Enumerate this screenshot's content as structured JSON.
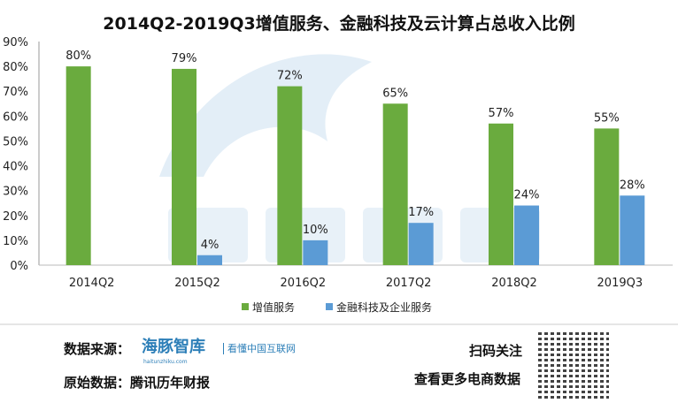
{
  "chart_data": {
    "type": "bar",
    "title": "2014Q2-2019Q3增值服务、金融科技及云计算占总收入比例",
    "categories": [
      "2014Q2",
      "2015Q2",
      "2016Q2",
      "2017Q2",
      "2018Q2",
      "2019Q3"
    ],
    "series": [
      {
        "name": "增值服务",
        "color": "#6aab3e",
        "values": [
          80,
          79,
          72,
          65,
          57,
          55
        ],
        "labels": [
          "80%",
          "79%",
          "72%",
          "65%",
          "57%",
          "55%"
        ]
      },
      {
        "name": "金融科技及企业服务",
        "color": "#5b9bd5",
        "values": [
          null,
          4,
          10,
          17,
          24,
          28
        ],
        "labels": [
          "",
          "4%",
          "10%",
          "17%",
          "24%",
          "28%"
        ]
      }
    ],
    "yticks": [
      "0%",
      "10%",
      "20%",
      "30%",
      "40%",
      "50%",
      "60%",
      "70%",
      "80%",
      "90%"
    ],
    "ylim": [
      0,
      90
    ],
    "grid": false,
    "legend": "bottom"
  },
  "watermark": {
    "text": "海豚智库",
    "url": "haitunzhiku.com"
  },
  "footer": {
    "source_label": "数据来源：",
    "logo": "海豚智库",
    "logo_sub": "haitunzhiku.com",
    "slogan": "看懂中国互联网",
    "origin": "原始数据：腾讯历年财报",
    "follow": "扫码关注",
    "more": "查看更多电商数据"
  }
}
